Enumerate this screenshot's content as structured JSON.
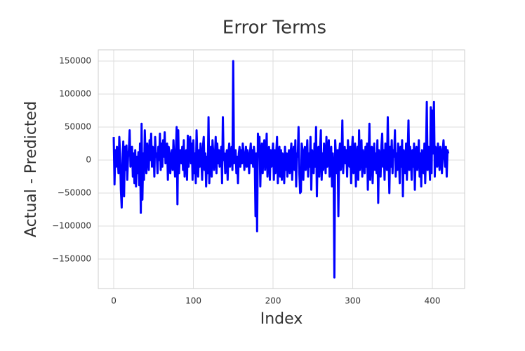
{
  "chart_data": {
    "type": "line",
    "title": "Error Terms",
    "x_label": "Index",
    "y_label": "Actual - Predicted",
    "color": "#0000ff",
    "grid": true,
    "xlim": [
      -19.4,
      440.5
    ],
    "xticks": [
      0,
      100,
      200,
      300,
      400
    ],
    "ylim": [
      -194700,
      167000
    ],
    "yticks": [
      {
        "value": -150000,
        "label": "−150000"
      },
      {
        "value": -100000,
        "label": "−100000"
      },
      {
        "value": -50000,
        "label": "−50000"
      },
      0,
      50000,
      100000,
      150000
    ],
    "values": [
      35000,
      -37000,
      15000,
      -10000,
      20000,
      5000,
      -20000,
      35000,
      10000,
      -45000,
      -72000,
      -5000,
      28000,
      -55000,
      20000,
      -15000,
      22000,
      -30000,
      5000,
      15000,
      45000,
      -10000,
      0,
      20000,
      -25000,
      10000,
      -35000,
      15000,
      -40000,
      5000,
      -20000,
      12000,
      -38000,
      25000,
      -80000,
      55000,
      -60000,
      10000,
      -30000,
      45000,
      5000,
      -20000,
      25000,
      10000,
      -15000,
      30000,
      0,
      40000,
      -10000,
      20000,
      15000,
      -25000,
      35000,
      5000,
      10000,
      -20000,
      20000,
      0,
      40000,
      -15000,
      25000,
      -10000,
      30000,
      5000,
      42000,
      -5000,
      15000,
      25000,
      -30000,
      20000,
      10000,
      -20000,
      5000,
      15000,
      -15000,
      30000,
      0,
      -25000,
      10000,
      50000,
      -67000,
      45000,
      -20000,
      10000,
      15000,
      -5000,
      20000,
      -15000,
      30000,
      -25000,
      5000,
      15000,
      -30000,
      37000,
      -10000,
      20000,
      35000,
      -5000,
      25000,
      -30000,
      30000,
      -20000,
      10000,
      -35000,
      45000,
      5000,
      -25000,
      15000,
      -10000,
      25000,
      0,
      -30000,
      20000,
      35000,
      -15000,
      10000,
      -40000,
      5000,
      -20000,
      65000,
      -35000,
      15000,
      20000,
      -25000,
      30000,
      10000,
      -15000,
      5000,
      35000,
      -20000,
      25000,
      -5000,
      15000,
      -10000,
      5000,
      20000,
      -35000,
      65000,
      0,
      10000,
      -20000,
      5000,
      15000,
      -30000,
      10000,
      25000,
      -10000,
      5000,
      20000,
      -15000,
      150000,
      -5000,
      10000,
      15000,
      -20000,
      5000,
      -35000,
      10000,
      20000,
      -10000,
      15000,
      -5000,
      25000,
      10000,
      -15000,
      5000,
      20000,
      -10000,
      15000,
      5000,
      -20000,
      10000,
      25000,
      -5000,
      15000,
      -10000,
      20000,
      5000,
      -85000,
      10000,
      -108000,
      40000,
      20000,
      35000,
      -40000,
      10000,
      25000,
      -20000,
      15000,
      30000,
      -15000,
      5000,
      40000,
      -25000,
      10000,
      20000,
      -30000,
      15000,
      -10000,
      5000,
      25000,
      -30000,
      15000,
      -20000,
      10000,
      35000,
      -35000,
      5000,
      20000,
      -25000,
      15000,
      -30000,
      10000,
      5000,
      -35000,
      20000,
      -15000,
      10000,
      -25000,
      5000,
      15000,
      -20000,
      10000,
      25000,
      -30000,
      5000,
      20000,
      -15000,
      30000,
      -40000,
      10000,
      5000,
      50000,
      -20000,
      -50000,
      -48000,
      25000,
      15000,
      -30000,
      10000,
      20000,
      -15000,
      5000,
      30000,
      -25000,
      10000,
      -10000,
      35000,
      -45000,
      15000,
      5000,
      -20000,
      25000,
      -10000,
      50000,
      -55000,
      10000,
      20000,
      -25000,
      15000,
      45000,
      -30000,
      10000,
      -15000,
      25000,
      5000,
      -20000,
      35000,
      -10000,
      15000,
      30000,
      -25000,
      5000,
      20000,
      -40000,
      10000,
      -15000,
      -178000,
      30000,
      5000,
      -20000,
      15000,
      -85000,
      10000,
      25000,
      -15000,
      5000,
      60000,
      -20000,
      10000,
      20000,
      -5000,
      15000,
      -25000,
      30000,
      5000,
      -10000,
      20000,
      -35000,
      15000,
      35000,
      -20000,
      10000,
      25000,
      -40000,
      5000,
      20000,
      -30000,
      45000,
      -15000,
      10000,
      30000,
      -25000,
      15000,
      5000,
      -20000,
      20000,
      -10000,
      25000,
      -45000,
      10000,
      55000,
      -30000,
      15000,
      20000,
      -35000,
      5000,
      25000,
      -15000,
      10000,
      -20000,
      30000,
      -65000,
      15000,
      5000,
      -25000,
      20000,
      40000,
      -10000,
      15000,
      -30000,
      25000,
      10000,
      -15000,
      65000,
      5000,
      -50000,
      20000,
      -10000,
      30000,
      -20000,
      15000,
      5000,
      45000,
      -25000,
      10000,
      -15000,
      25000,
      5000,
      -35000,
      20000,
      -10000,
      30000,
      -55000,
      15000,
      5000,
      -20000,
      25000,
      -30000,
      10000,
      60000,
      -15000,
      20000,
      5000,
      -30000,
      15000,
      -10000,
      25000,
      -45000,
      10000,
      20000,
      -15000,
      5000,
      30000,
      -25000,
      10000,
      -40000,
      15000,
      5000,
      -20000,
      25000,
      -35000,
      10000,
      88000,
      -15000,
      20000,
      5000,
      -30000,
      80000,
      -20000,
      75000,
      10000,
      88000,
      -25000,
      20000,
      15000,
      -10000,
      25000,
      5000,
      -15000,
      20000,
      10000,
      -20000,
      15000,
      30000,
      5000,
      -10000,
      20000,
      -25000,
      15000,
      10000
    ]
  }
}
